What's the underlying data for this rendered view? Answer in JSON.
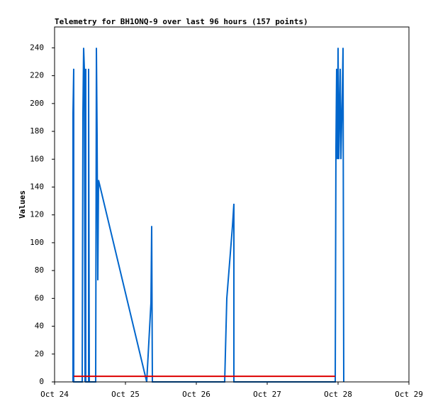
{
  "chart_data": {
    "type": "line",
    "title": "Telemetry for BH1ONQ-9 over last 96 hours (157 points)",
    "y_label": "Values",
    "xlim": [
      0,
      5
    ],
    "xticks": [
      {
        "value": 0,
        "label": "Oct 24"
      },
      {
        "value": 1,
        "label": "Oct 25"
      },
      {
        "value": 2,
        "label": "Oct 26"
      },
      {
        "value": 3,
        "label": "Oct 27"
      },
      {
        "value": 4,
        "label": "Oct 28"
      },
      {
        "value": 5,
        "label": "Oct 29"
      }
    ],
    "ylim": [
      0,
      255
    ],
    "yticks": [
      0,
      20,
      40,
      60,
      80,
      100,
      120,
      140,
      160,
      180,
      200,
      220,
      240
    ],
    "series": [
      {
        "color": "#0066cc",
        "x": [
          0.26,
          0.26,
          0.27,
          0.27,
          0.39,
          0.4,
          0.41,
          0.42,
          0.43,
          0.44,
          0.44,
          0.48,
          0.48,
          0.49,
          0.58,
          0.59,
          0.59,
          0.6,
          0.61,
          0.62,
          1.3,
          1.36,
          1.37,
          1.38,
          2.4,
          2.43,
          2.51,
          2.53,
          2.53,
          3.96,
          3.97,
          3.98,
          3.99,
          4.0,
          4.01,
          4.03,
          4.04,
          4.06,
          4.07,
          4.08
        ],
        "values": [
          0,
          193,
          225,
          0,
          0,
          193,
          240,
          225,
          0,
          225,
          0,
          0,
          225,
          0,
          0,
          225,
          240,
          177,
          73,
          145,
          0,
          57,
          112,
          0,
          0,
          60,
          112,
          128,
          0,
          0,
          168,
          225,
          160,
          240,
          160,
          225,
          160,
          208,
          240,
          0
        ]
      },
      {
        "color": "#dd0000",
        "x": [
          0.27,
          3.96
        ],
        "values": [
          4,
          4
        ]
      }
    ]
  }
}
